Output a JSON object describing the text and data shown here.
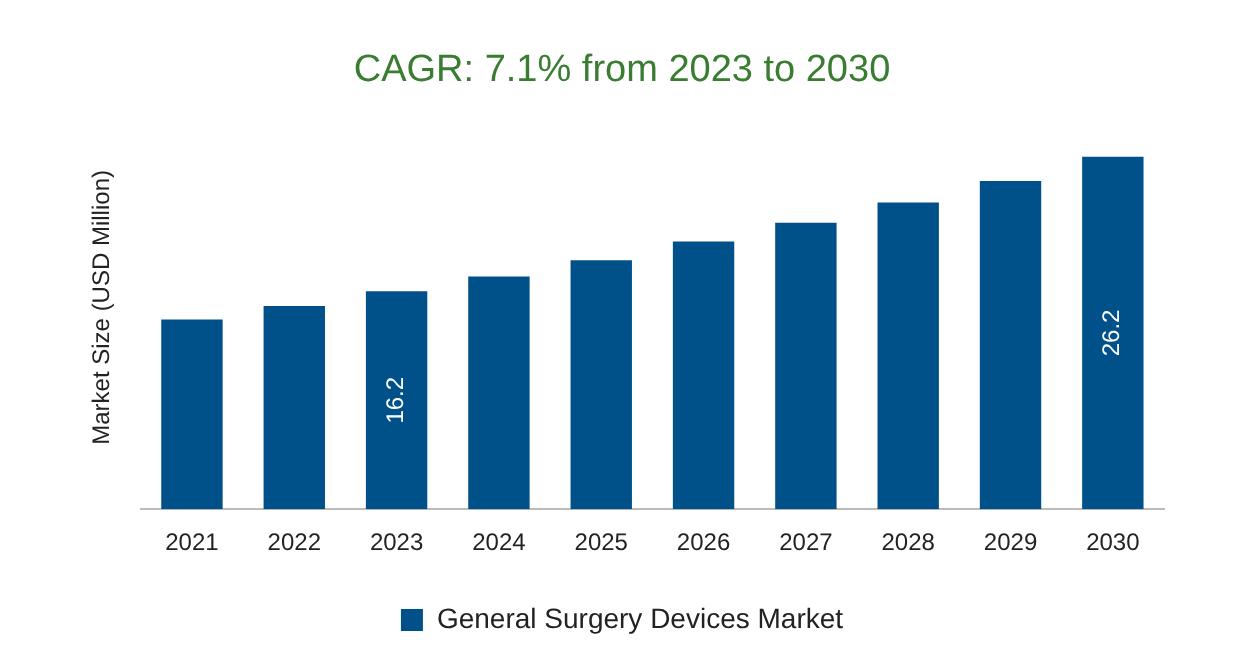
{
  "chart_data": {
    "type": "bar",
    "title": "CAGR: 7.1% from 2023 to 2030",
    "ylabel": "Market Size (USD Million)",
    "categories": [
      "2021",
      "2022",
      "2023",
      "2024",
      "2025",
      "2026",
      "2027",
      "2028",
      "2029",
      "2030"
    ],
    "series": [
      {
        "name": "General Surgery Devices Market",
        "color": "#00508a",
        "values": [
          14.1,
          15.1,
          16.2,
          17.3,
          18.5,
          19.9,
          21.3,
          22.8,
          24.4,
          26.2
        ],
        "value_labels": [
          null,
          null,
          "16.2",
          null,
          null,
          null,
          null,
          null,
          null,
          "26.2"
        ]
      }
    ],
    "legend": "bottom",
    "grid": false
  }
}
